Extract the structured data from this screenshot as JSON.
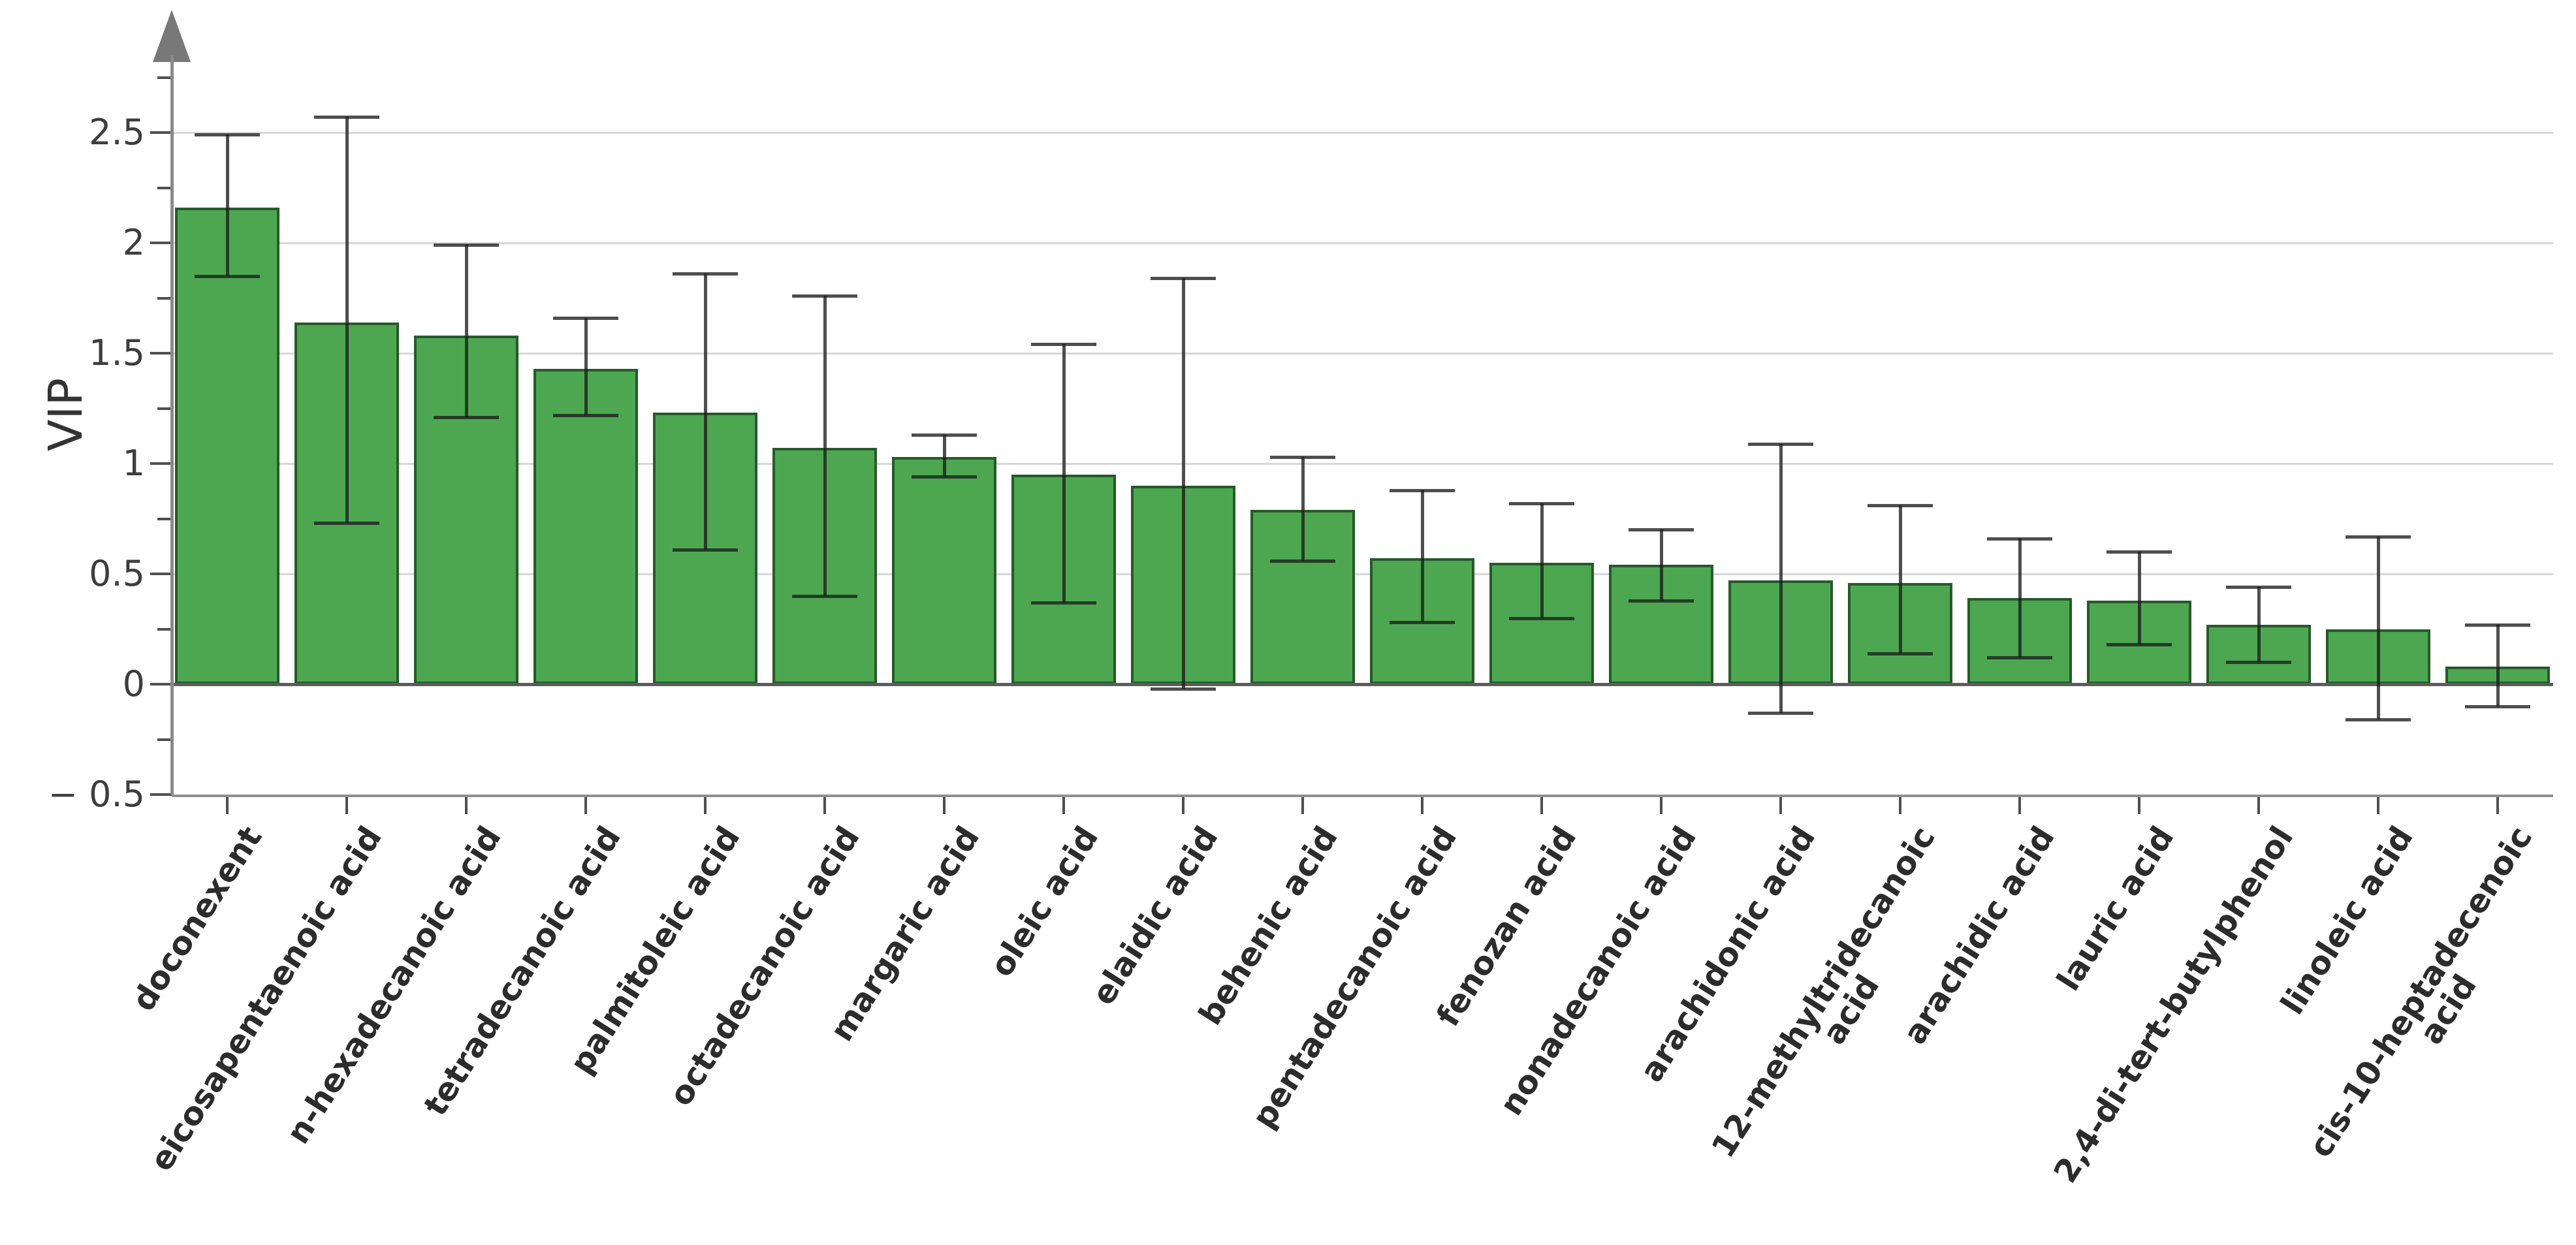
{
  "figure": {
    "background_color": "#ffffff",
    "title": "",
    "legend": "none"
  },
  "chart_data": {
    "type": "bar",
    "title": "",
    "xlabel": "",
    "ylabel": "VIP",
    "ylim": [
      -0.5,
      3.0
    ],
    "grid": "horizontal light-gray lines at 0.5 intervals from 0.5 to 2.5",
    "legend_position": "none",
    "bar_color": "#4CA750",
    "bar_edge_color": "#265A29",
    "error_bar_color": "#4d4d4d",
    "gridline_color": "#d7d7d7",
    "axis_color": "#8a8a8a",
    "y_major_ticks": [
      -0.5,
      0,
      0.5,
      1,
      1.5,
      2,
      2.5
    ],
    "y_major_tick_labels": [
      "− 0.5",
      "0",
      "0.5",
      "1",
      "1.5",
      "2",
      "2.5"
    ],
    "y_minor_ticks": [
      -0.25,
      0.25,
      0.75,
      1.25,
      1.75,
      2.25,
      2.75
    ],
    "categories": [
      "doconexent",
      "eicosapentaenoic acid",
      "n-hexadecanoic acid",
      "tetradecanoic acid",
      "palmitoleic acid",
      "octadecanoic acid",
      "margaric acid",
      "oleic acid",
      "elaidic acid",
      "behenic acid",
      "pentadecanoic acid",
      "fenozan acid",
      "nonadecanoic acid",
      "arachidonic acid",
      "12-methyltridecanoic\nacid",
      "arachidic acid",
      "lauric acid",
      "2,4-di-tert-butylphenol",
      "linoleic acid",
      "cis-10-heptadecenoic\nacid"
    ],
    "values": [
      2.16,
      1.64,
      1.58,
      1.43,
      1.23,
      1.07,
      1.03,
      0.95,
      0.9,
      0.79,
      0.57,
      0.55,
      0.54,
      0.47,
      0.46,
      0.39,
      0.38,
      0.27,
      0.25,
      0.08
    ],
    "error_low": [
      1.85,
      0.73,
      1.21,
      1.22,
      0.61,
      0.4,
      0.94,
      0.37,
      -0.02,
      0.56,
      0.28,
      0.3,
      0.38,
      -0.13,
      0.14,
      0.12,
      0.18,
      0.1,
      -0.16,
      -0.1
    ],
    "error_high": [
      2.49,
      2.57,
      1.99,
      1.66,
      1.86,
      1.76,
      1.13,
      1.54,
      1.84,
      1.03,
      0.88,
      0.82,
      0.7,
      1.09,
      0.81,
      0.66,
      0.6,
      0.44,
      0.67,
      0.27
    ]
  }
}
